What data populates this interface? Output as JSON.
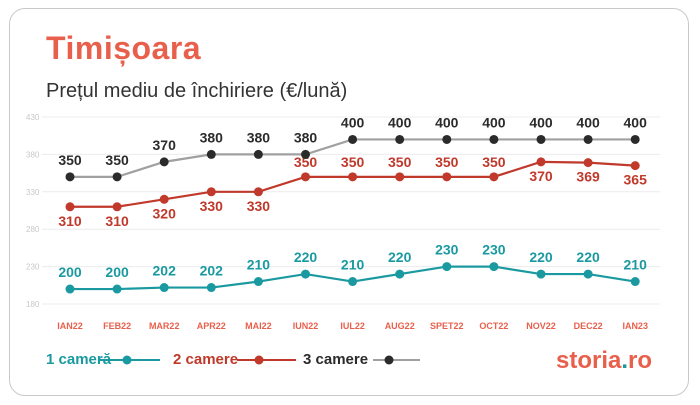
{
  "title": "Timișoara",
  "subtitle": "Prețul mediu de închiriere (€/lună)",
  "brand": {
    "name": "storia",
    "dot": ".",
    "tld": "ro"
  },
  "chart_data": {
    "type": "line",
    "categories": [
      "IAN22",
      "FEB22",
      "MAR22",
      "APR22",
      "MAI22",
      "IUN22",
      "IUL22",
      "AUG22",
      "SPET22",
      "OCT22",
      "NOV22",
      "DEC22",
      "IAN23"
    ],
    "ylim": [
      160,
      440
    ],
    "y_ticks": [
      {
        "value": 430,
        "label": "430"
      },
      {
        "value": 380,
        "label": "380"
      },
      {
        "value": 330,
        "label": "330"
      },
      {
        "value": 280,
        "label": "280"
      },
      {
        "value": 230,
        "label": "230"
      },
      {
        "value": 180,
        "label": "180"
      }
    ],
    "grid": true,
    "legend_position": "bottom-left",
    "series": [
      {
        "name": "1 cameră",
        "color": "#1a9aa0",
        "values": [
          200,
          200,
          202,
          202,
          210,
          220,
          210,
          220,
          230,
          230,
          220,
          220,
          210
        ],
        "point_y": [
          181,
          181,
          182,
          182,
          190,
          198,
          189,
          198,
          207,
          207,
          198,
          198,
          189
        ]
      },
      {
        "name": "2 camere",
        "color": "#c0392b",
        "values": [
          310,
          310,
          320,
          330,
          330,
          350,
          350,
          350,
          350,
          350,
          370,
          369,
          365
        ],
        "point_y": [
          301,
          301,
          311,
          321,
          321,
          342,
          342,
          343,
          343,
          343,
          362,
          361,
          357
        ]
      },
      {
        "name": "3 camere",
        "color": "#2b2b2b",
        "line_color": "#a0a0a0",
        "values": [
          350,
          350,
          370,
          380,
          380,
          380,
          400,
          400,
          400,
          400,
          400,
          400,
          400
        ],
        "point_y": [
          342,
          342,
          362,
          373,
          373,
          373,
          395,
          395,
          395,
          395,
          395,
          395,
          395
        ]
      }
    ]
  }
}
